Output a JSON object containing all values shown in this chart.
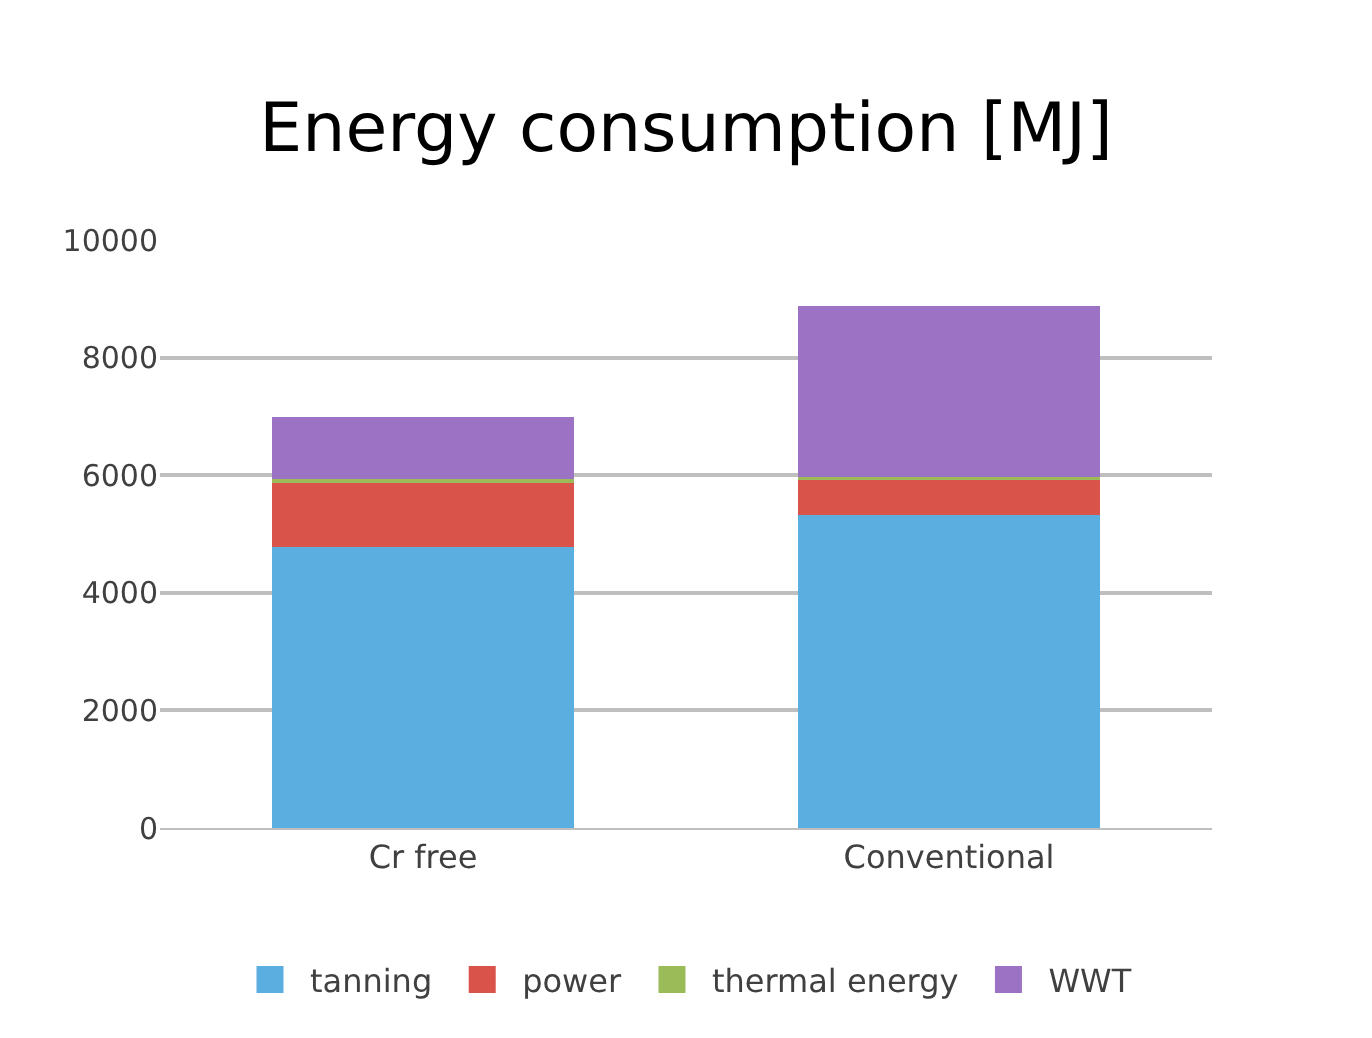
{
  "chart_data": {
    "type": "bar",
    "title": "Energy consumption [MJ]",
    "stacked": true,
    "categories": [
      "Cr free",
      "Conventional"
    ],
    "series": [
      {
        "name": "tanning",
        "color": "#5aaee0",
        "values": [
          4800,
          5350
        ]
      },
      {
        "name": "power",
        "color": "#d9534a",
        "values": [
          1100,
          600
        ]
      },
      {
        "name": "thermal energy",
        "color": "#9bbb59",
        "values": [
          60,
          50
        ]
      },
      {
        "name": "WWT",
        "color": "#9b72c4",
        "values": [
          1000,
          2850
        ]
      }
    ],
    "ylim": [
      0,
      10000
    ],
    "yticks": [
      0,
      2000,
      4000,
      6000,
      8000,
      10000
    ],
    "grid": "y",
    "legend": "bottom"
  }
}
